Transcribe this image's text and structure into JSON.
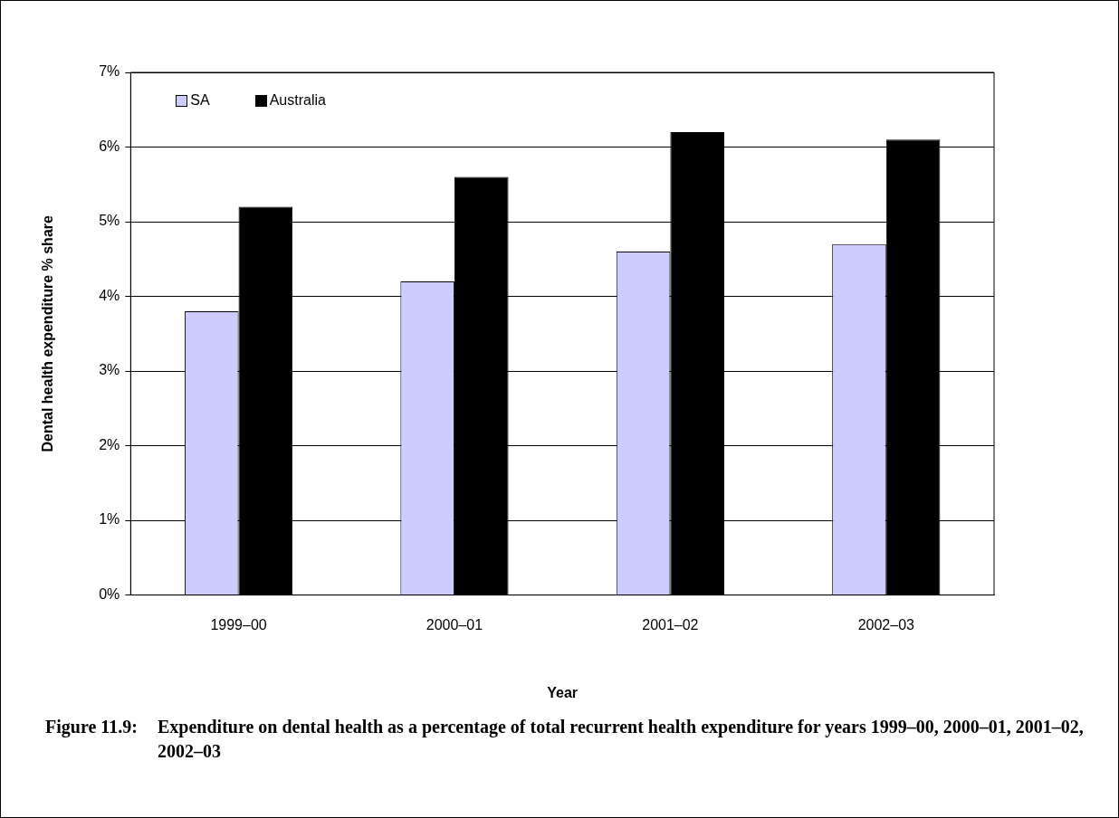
{
  "chart_data": {
    "type": "bar",
    "title": "Figure 11.9:\tExpenditure on dental health as a percentage of total recurrent health expenditure for years 1999–00, 2000–01, 2001–02, 2002–03",
    "xlabel": "Year",
    "ylabel": "Dental health expenditure % share",
    "categories": [
      "1999–00",
      "2000–01",
      "2001–02",
      "2002–03"
    ],
    "series": [
      {
        "name": "SA",
        "color": "#ccccff",
        "values": [
          3.8,
          4.2,
          4.6,
          4.7
        ]
      },
      {
        "name": "Australia",
        "color": "#000000",
        "values": [
          5.2,
          5.6,
          6.2,
          6.1
        ]
      }
    ],
    "ylim": [
      0,
      7
    ],
    "yticks": [
      {
        "value": 0,
        "label": "0%"
      },
      {
        "value": 1,
        "label": "1%"
      },
      {
        "value": 2,
        "label": "2%"
      },
      {
        "value": 3,
        "label": "3%"
      },
      {
        "value": 4,
        "label": "4%"
      },
      {
        "value": 5,
        "label": "5%"
      },
      {
        "value": 6,
        "label": "6%"
      },
      {
        "value": 7,
        "label": "7%"
      }
    ],
    "grid": "y",
    "legend": "top left"
  }
}
